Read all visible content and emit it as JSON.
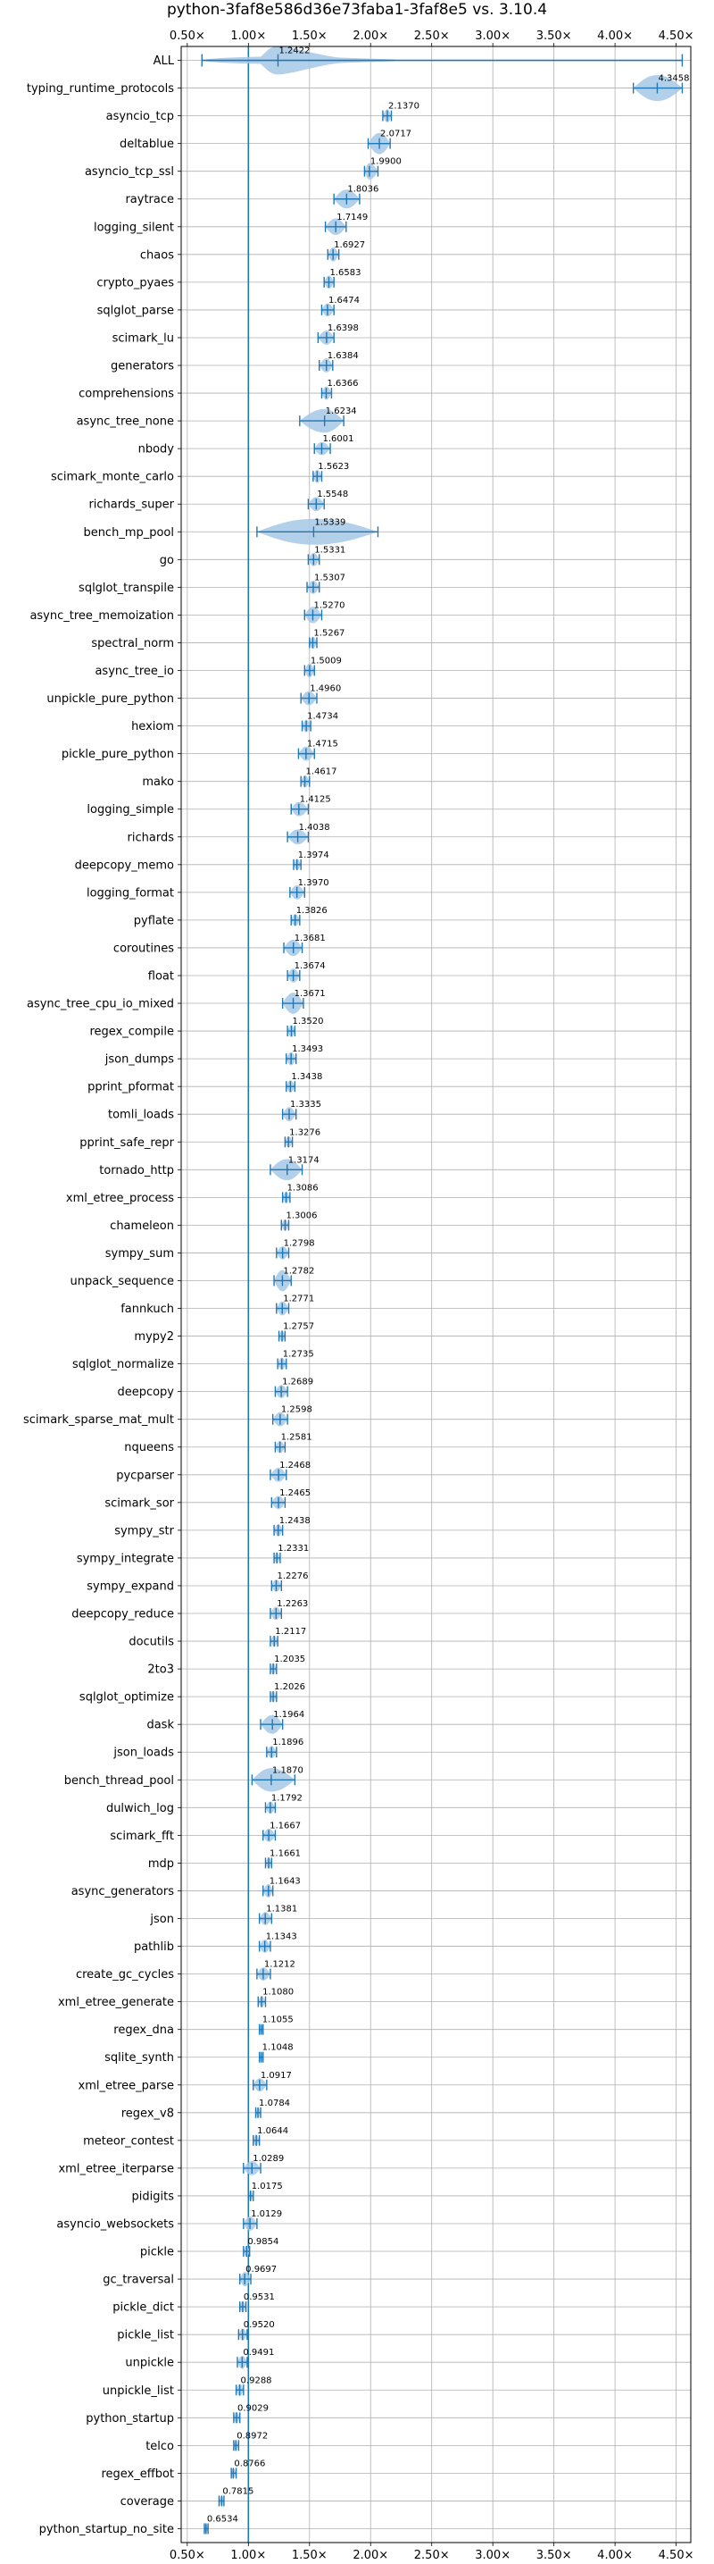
{
  "chart_data": {
    "type": "violin",
    "title": "python-3faf8e586d36e73faba1-3faf8e5 vs. 3.10.4",
    "xlabel": "",
    "ylabel": "",
    "x_ticks": [
      "0.50×",
      "1.00×",
      "1.50×",
      "2.00×",
      "2.50×",
      "3.00×",
      "3.50×",
      "4.00×",
      "4.50×"
    ],
    "x_tick_values": [
      0.5,
      1.0,
      1.5,
      2.0,
      2.5,
      3.0,
      3.5,
      4.0,
      4.5
    ],
    "xlim": [
      0.45,
      4.62
    ],
    "baseline": 1.0,
    "grid": true,
    "accent_color": "#1f77b4",
    "fill_color": "#a6c8e6",
    "categories": [
      {
        "name": "ALL",
        "value": 1.2422,
        "label": "1.2422",
        "min": 0.62,
        "max": 4.55,
        "width": 0.6,
        "kind": "all"
      },
      {
        "name": "typing_runtime_protocols",
        "value": 4.3458,
        "label": "4.3458",
        "min": 4.15,
        "max": 4.55,
        "width": 0.55,
        "kind": "wide"
      },
      {
        "name": "asyncio_tcp",
        "value": 2.137,
        "label": "2.1370",
        "min": 2.1,
        "max": 2.17,
        "width": 0.28
      },
      {
        "name": "deltablue",
        "value": 2.0717,
        "label": "2.0717",
        "min": 1.98,
        "max": 2.16,
        "width": 0.45
      },
      {
        "name": "asyncio_tcp_ssl",
        "value": 1.99,
        "label": "1.9900",
        "min": 1.95,
        "max": 2.06,
        "width": 0.35
      },
      {
        "name": "raytrace",
        "value": 1.8036,
        "label": "1.8036",
        "min": 1.7,
        "max": 1.91,
        "width": 0.4
      },
      {
        "name": "logging_silent",
        "value": 1.7149,
        "label": "1.7149",
        "min": 1.63,
        "max": 1.8,
        "width": 0.35
      },
      {
        "name": "chaos",
        "value": 1.6927,
        "label": "1.6927",
        "min": 1.65,
        "max": 1.74,
        "width": 0.3
      },
      {
        "name": "crypto_pyaes",
        "value": 1.6583,
        "label": "1.6583",
        "min": 1.62,
        "max": 1.7,
        "width": 0.28
      },
      {
        "name": "sqlglot_parse",
        "value": 1.6474,
        "label": "1.6474",
        "min": 1.6,
        "max": 1.7,
        "width": 0.28
      },
      {
        "name": "scimark_lu",
        "value": 1.6398,
        "label": "1.6398",
        "min": 1.57,
        "max": 1.7,
        "width": 0.3
      },
      {
        "name": "generators",
        "value": 1.6384,
        "label": "1.6384",
        "min": 1.58,
        "max": 1.69,
        "width": 0.3
      },
      {
        "name": "comprehensions",
        "value": 1.6366,
        "label": "1.6366",
        "min": 1.6,
        "max": 1.68,
        "width": 0.28
      },
      {
        "name": "async_tree_none",
        "value": 1.6234,
        "label": "1.6234",
        "min": 1.42,
        "max": 1.78,
        "width": 0.5
      },
      {
        "name": "nbody",
        "value": 1.6001,
        "label": "1.6001",
        "min": 1.54,
        "max": 1.67,
        "width": 0.28
      },
      {
        "name": "scimark_monte_carlo",
        "value": 1.5623,
        "label": "1.5623",
        "min": 1.53,
        "max": 1.6,
        "width": 0.28
      },
      {
        "name": "richards_super",
        "value": 1.5548,
        "label": "1.5548",
        "min": 1.49,
        "max": 1.62,
        "width": 0.3
      },
      {
        "name": "bench_mp_pool",
        "value": 1.5339,
        "label": "1.5339",
        "min": 1.07,
        "max": 2.06,
        "width": 0.55,
        "kind": "wide"
      },
      {
        "name": "go",
        "value": 1.5331,
        "label": "1.5331",
        "min": 1.49,
        "max": 1.58,
        "width": 0.28
      },
      {
        "name": "sqlglot_transpile",
        "value": 1.5307,
        "label": "1.5307",
        "min": 1.48,
        "max": 1.58,
        "width": 0.28
      },
      {
        "name": "async_tree_memoization",
        "value": 1.527,
        "label": "1.5270",
        "min": 1.46,
        "max": 1.6,
        "width": 0.35
      },
      {
        "name": "spectral_norm",
        "value": 1.5267,
        "label": "1.5267",
        "min": 1.5,
        "max": 1.56,
        "width": 0.26
      },
      {
        "name": "async_tree_io",
        "value": 1.5009,
        "label": "1.5009",
        "min": 1.46,
        "max": 1.54,
        "width": 0.3
      },
      {
        "name": "unpickle_pure_python",
        "value": 1.496,
        "label": "1.4960",
        "min": 1.43,
        "max": 1.56,
        "width": 0.3
      },
      {
        "name": "hexiom",
        "value": 1.4734,
        "label": "1.4734",
        "min": 1.44,
        "max": 1.51,
        "width": 0.26
      },
      {
        "name": "pickle_pure_python",
        "value": 1.4715,
        "label": "1.4715",
        "min": 1.41,
        "max": 1.54,
        "width": 0.3
      },
      {
        "name": "mako",
        "value": 1.4617,
        "label": "1.4617",
        "min": 1.43,
        "max": 1.5,
        "width": 0.26
      },
      {
        "name": "logging_simple",
        "value": 1.4125,
        "label": "1.4125",
        "min": 1.35,
        "max": 1.49,
        "width": 0.3
      },
      {
        "name": "richards",
        "value": 1.4038,
        "label": "1.4038",
        "min": 1.32,
        "max": 1.49,
        "width": 0.32
      },
      {
        "name": "deepcopy_memo",
        "value": 1.3974,
        "label": "1.3974",
        "min": 1.37,
        "max": 1.43,
        "width": 0.24
      },
      {
        "name": "logging_format",
        "value": 1.397,
        "label": "1.3970",
        "min": 1.34,
        "max": 1.46,
        "width": 0.3
      },
      {
        "name": "pyflate",
        "value": 1.3826,
        "label": "1.3826",
        "min": 1.35,
        "max": 1.42,
        "width": 0.26
      },
      {
        "name": "coroutines",
        "value": 1.3681,
        "label": "1.3681",
        "min": 1.29,
        "max": 1.44,
        "width": 0.35
      },
      {
        "name": "float",
        "value": 1.3674,
        "label": "1.3674",
        "min": 1.32,
        "max": 1.42,
        "width": 0.3
      },
      {
        "name": "async_tree_cpu_io_mixed",
        "value": 1.3671,
        "label": "1.3671",
        "min": 1.28,
        "max": 1.45,
        "width": 0.45
      },
      {
        "name": "regex_compile",
        "value": 1.352,
        "label": "1.3520",
        "min": 1.32,
        "max": 1.38,
        "width": 0.26
      },
      {
        "name": "json_dumps",
        "value": 1.3493,
        "label": "1.3493",
        "min": 1.31,
        "max": 1.39,
        "width": 0.28
      },
      {
        "name": "pprint_pformat",
        "value": 1.3438,
        "label": "1.3438",
        "min": 1.31,
        "max": 1.38,
        "width": 0.26
      },
      {
        "name": "tomli_loads",
        "value": 1.3335,
        "label": "1.3335",
        "min": 1.28,
        "max": 1.39,
        "width": 0.3
      },
      {
        "name": "pprint_safe_repr",
        "value": 1.3276,
        "label": "1.3276",
        "min": 1.3,
        "max": 1.36,
        "width": 0.24
      },
      {
        "name": "tornado_http",
        "value": 1.3174,
        "label": "1.3174",
        "min": 1.18,
        "max": 1.44,
        "width": 0.45
      },
      {
        "name": "xml_etree_process",
        "value": 1.3086,
        "label": "1.3086",
        "min": 1.28,
        "max": 1.34,
        "width": 0.24
      },
      {
        "name": "chameleon",
        "value": 1.3006,
        "label": "1.3006",
        "min": 1.27,
        "max": 1.33,
        "width": 0.24
      },
      {
        "name": "sympy_sum",
        "value": 1.2798,
        "label": "1.2798",
        "min": 1.23,
        "max": 1.33,
        "width": 0.28
      },
      {
        "name": "unpack_sequence",
        "value": 1.2782,
        "label": "1.2782",
        "min": 1.21,
        "max": 1.35,
        "width": 0.45
      },
      {
        "name": "fannkuch",
        "value": 1.2771,
        "label": "1.2771",
        "min": 1.23,
        "max": 1.33,
        "width": 0.3
      },
      {
        "name": "mypy2",
        "value": 1.2757,
        "label": "1.2757",
        "min": 1.25,
        "max": 1.3,
        "width": 0.24
      },
      {
        "name": "sqlglot_normalize",
        "value": 1.2735,
        "label": "1.2735",
        "min": 1.24,
        "max": 1.31,
        "width": 0.26
      },
      {
        "name": "deepcopy",
        "value": 1.2689,
        "label": "1.2689",
        "min": 1.22,
        "max": 1.32,
        "width": 0.28
      },
      {
        "name": "scimark_sparse_mat_mult",
        "value": 1.2598,
        "label": "1.2598",
        "min": 1.2,
        "max": 1.32,
        "width": 0.3
      },
      {
        "name": "nqueens",
        "value": 1.2581,
        "label": "1.2581",
        "min": 1.22,
        "max": 1.3,
        "width": 0.26
      },
      {
        "name": "pycparser",
        "value": 1.2468,
        "label": "1.2468",
        "min": 1.18,
        "max": 1.31,
        "width": 0.3
      },
      {
        "name": "scimark_sor",
        "value": 1.2465,
        "label": "1.2465",
        "min": 1.19,
        "max": 1.3,
        "width": 0.28
      },
      {
        "name": "sympy_str",
        "value": 1.2438,
        "label": "1.2438",
        "min": 1.21,
        "max": 1.28,
        "width": 0.26
      },
      {
        "name": "sympy_integrate",
        "value": 1.2331,
        "label": "1.2331",
        "min": 1.21,
        "max": 1.26,
        "width": 0.24
      },
      {
        "name": "sympy_expand",
        "value": 1.2276,
        "label": "1.2276",
        "min": 1.19,
        "max": 1.27,
        "width": 0.26
      },
      {
        "name": "deepcopy_reduce",
        "value": 1.2263,
        "label": "1.2263",
        "min": 1.18,
        "max": 1.27,
        "width": 0.28
      },
      {
        "name": "docutils",
        "value": 1.2117,
        "label": "1.2117",
        "min": 1.18,
        "max": 1.24,
        "width": 0.24
      },
      {
        "name": "2to3",
        "value": 1.2035,
        "label": "1.2035",
        "min": 1.18,
        "max": 1.23,
        "width": 0.24
      },
      {
        "name": "sqlglot_optimize",
        "value": 1.2026,
        "label": "1.2026",
        "min": 1.18,
        "max": 1.23,
        "width": 0.24
      },
      {
        "name": "dask",
        "value": 1.1964,
        "label": "1.1964",
        "min": 1.1,
        "max": 1.28,
        "width": 0.4
      },
      {
        "name": "json_loads",
        "value": 1.1896,
        "label": "1.1896",
        "min": 1.15,
        "max": 1.23,
        "width": 0.26
      },
      {
        "name": "bench_thread_pool",
        "value": 1.187,
        "label": "1.1870",
        "min": 1.03,
        "max": 1.38,
        "width": 0.5
      },
      {
        "name": "dulwich_log",
        "value": 1.1792,
        "label": "1.1792",
        "min": 1.14,
        "max": 1.22,
        "width": 0.26
      },
      {
        "name": "scimark_fft",
        "value": 1.1667,
        "label": "1.1667",
        "min": 1.12,
        "max": 1.22,
        "width": 0.28
      },
      {
        "name": "mdp",
        "value": 1.1661,
        "label": "1.1661",
        "min": 1.14,
        "max": 1.19,
        "width": 0.24
      },
      {
        "name": "async_generators",
        "value": 1.1643,
        "label": "1.1643",
        "min": 1.12,
        "max": 1.2,
        "width": 0.28
      },
      {
        "name": "json",
        "value": 1.1381,
        "label": "1.1381",
        "min": 1.09,
        "max": 1.19,
        "width": 0.28
      },
      {
        "name": "pathlib",
        "value": 1.1343,
        "label": "1.1343",
        "min": 1.09,
        "max": 1.18,
        "width": 0.28
      },
      {
        "name": "create_gc_cycles",
        "value": 1.1212,
        "label": "1.1212",
        "min": 1.07,
        "max": 1.18,
        "width": 0.28
      },
      {
        "name": "xml_etree_generate",
        "value": 1.108,
        "label": "1.1080",
        "min": 1.08,
        "max": 1.14,
        "width": 0.24
      },
      {
        "name": "regex_dna",
        "value": 1.1055,
        "label": "1.1055",
        "min": 1.09,
        "max": 1.12,
        "width": 0.22
      },
      {
        "name": "sqlite_synth",
        "value": 1.1048,
        "label": "1.1048",
        "min": 1.09,
        "max": 1.12,
        "width": 0.22
      },
      {
        "name": "xml_etree_parse",
        "value": 1.0917,
        "label": "1.0917",
        "min": 1.04,
        "max": 1.15,
        "width": 0.28
      },
      {
        "name": "regex_v8",
        "value": 1.0784,
        "label": "1.0784",
        "min": 1.06,
        "max": 1.1,
        "width": 0.22
      },
      {
        "name": "meteor_contest",
        "value": 1.0644,
        "label": "1.0644",
        "min": 1.04,
        "max": 1.09,
        "width": 0.24
      },
      {
        "name": "xml_etree_iterparse",
        "value": 1.0289,
        "label": "1.0289",
        "min": 0.96,
        "max": 1.1,
        "width": 0.3
      },
      {
        "name": "pidigits",
        "value": 1.0175,
        "label": "1.0175",
        "min": 1.0,
        "max": 1.04,
        "width": 0.22
      },
      {
        "name": "asyncio_websockets",
        "value": 1.0129,
        "label": "1.0129",
        "min": 0.96,
        "max": 1.07,
        "width": 0.3
      },
      {
        "name": "pickle",
        "value": 0.9854,
        "label": "0.9854",
        "min": 0.96,
        "max": 1.01,
        "width": 0.24
      },
      {
        "name": "gc_traversal",
        "value": 0.9697,
        "label": "0.9697",
        "min": 0.93,
        "max": 1.02,
        "width": 0.3
      },
      {
        "name": "pickle_dict",
        "value": 0.9531,
        "label": "0.9531",
        "min": 0.93,
        "max": 0.98,
        "width": 0.24
      },
      {
        "name": "pickle_list",
        "value": 0.952,
        "label": "0.9520",
        "min": 0.92,
        "max": 0.99,
        "width": 0.26
      },
      {
        "name": "unpickle",
        "value": 0.9491,
        "label": "0.9491",
        "min": 0.91,
        "max": 0.99,
        "width": 0.28
      },
      {
        "name": "unpickle_list",
        "value": 0.9288,
        "label": "0.9288",
        "min": 0.9,
        "max": 0.96,
        "width": 0.26
      },
      {
        "name": "python_startup",
        "value": 0.9029,
        "label": "0.9029",
        "min": 0.88,
        "max": 0.93,
        "width": 0.24
      },
      {
        "name": "telco",
        "value": 0.8972,
        "label": "0.8972",
        "min": 0.88,
        "max": 0.92,
        "width": 0.22
      },
      {
        "name": "regex_effbot",
        "value": 0.8766,
        "label": "0.8766",
        "min": 0.86,
        "max": 0.9,
        "width": 0.22
      },
      {
        "name": "coverage",
        "value": 0.7815,
        "label": "0.7815",
        "min": 0.76,
        "max": 0.8,
        "width": 0.22
      },
      {
        "name": "python_startup_no_site",
        "value": 0.6534,
        "label": "0.6534",
        "min": 0.64,
        "max": 0.67,
        "width": 0.2
      }
    ]
  }
}
